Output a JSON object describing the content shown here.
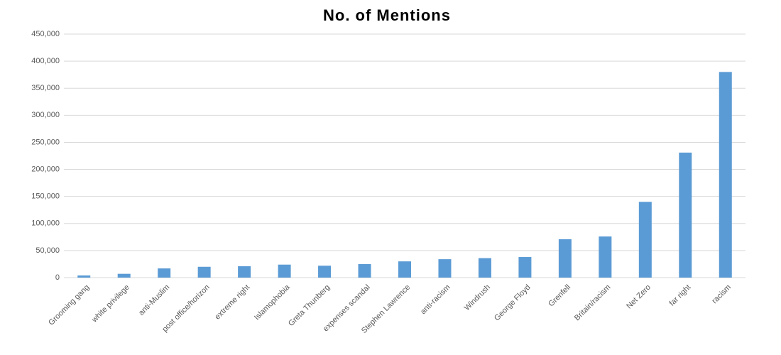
{
  "chart_data": {
    "type": "bar",
    "title": "No. of Mentions",
    "categories": [
      "Grooming gang",
      "white privilege",
      "anti-Muslim",
      "post office/horizon",
      "extreme right",
      "Islamophobia",
      "Greta Thunberg",
      "expenses scandal",
      "Stephen Lawrence",
      "anti-racism",
      "Windrush",
      "George Floyd",
      "Grenfell",
      "Britain/racism",
      "Net Zero",
      "far right",
      "racism"
    ],
    "values": [
      4000,
      7000,
      17000,
      20000,
      21000,
      24000,
      22000,
      25000,
      30000,
      34000,
      36000,
      38000,
      71000,
      76000,
      140000,
      231000,
      380000
    ],
    "color": "#5b9bd5",
    "ylim": [
      0,
      450000
    ],
    "yticks": [
      0,
      {
        "value": 50000,
        "label": "50,000"
      },
      {
        "value": 100000,
        "label": "100,000"
      },
      {
        "value": 150000,
        "label": "150,000"
      },
      {
        "value": 200000,
        "label": "200,000"
      },
      {
        "value": 250000,
        "label": "250,000"
      },
      {
        "value": 300000,
        "label": "300,000"
      },
      {
        "value": 350000,
        "label": "350,000"
      },
      {
        "value": 400000,
        "label": "400,000"
      },
      {
        "value": 450000,
        "label": "450,000"
      }
    ],
    "grid": true
  }
}
